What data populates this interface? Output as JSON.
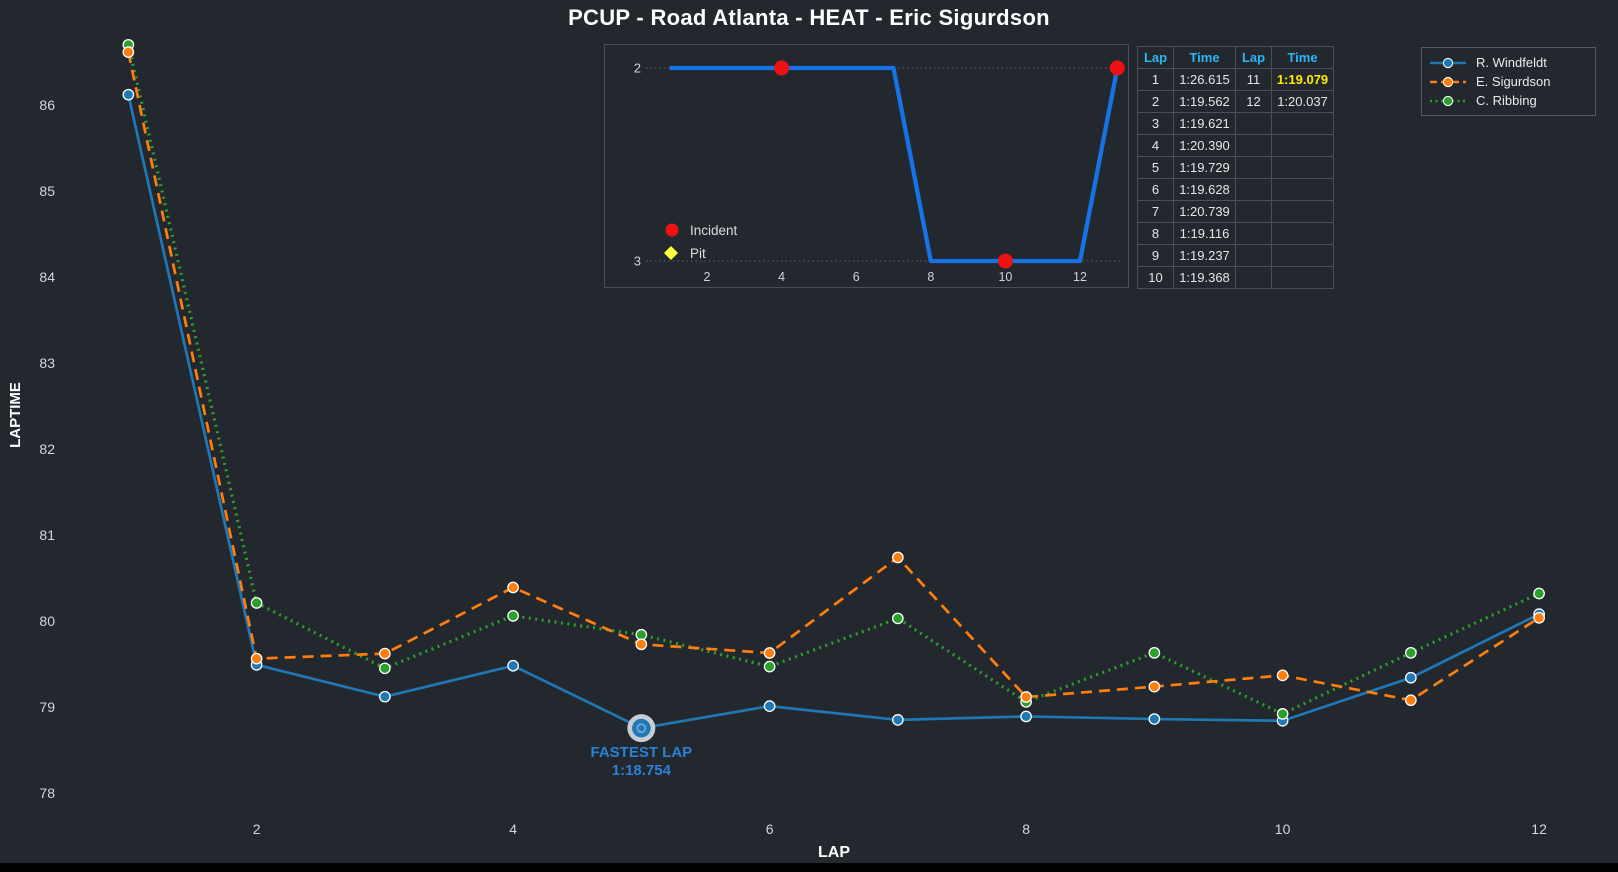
{
  "title": "PCUP - Road Atlanta - HEAT - Eric Sigurdson",
  "colors": {
    "background": "#23272e",
    "tick_text": "#d4d7da",
    "axis_title": "#ffffff",
    "table_border": "#4b5056",
    "table_header": "#29b6f6",
    "table_highlight": "#ffeb00",
    "annotation_blue": "#2a82d4",
    "fastest_ring": "#c7cdd5",
    "inset_line": "#1772e5",
    "incident_red": "#ee1111",
    "pit_yellow": "#ffff3c"
  },
  "legend": {
    "items": [
      {
        "label": "R. Windfeldt",
        "color": "#1f77b4",
        "style": "solid"
      },
      {
        "label": "E. Sigurdson",
        "color": "#ff7f0e",
        "style": "dashed"
      },
      {
        "label": "C. Ribbing",
        "color": "#2ca02c",
        "style": "dotted"
      }
    ]
  },
  "annotation": {
    "label": "FASTEST LAP",
    "value": "1:18.754",
    "lap": 5,
    "series": "R. Windfeldt"
  },
  "lap_table": {
    "headers": [
      "Lap",
      "Time",
      "Lap",
      "Time"
    ],
    "rows": [
      [
        "1",
        "1:26.615",
        "11",
        "1:19.079"
      ],
      [
        "2",
        "1:19.562",
        "12",
        "1:20.037"
      ],
      [
        "3",
        "1:19.621",
        "",
        ""
      ],
      [
        "4",
        "1:20.390",
        "",
        ""
      ],
      [
        "5",
        "1:19.729",
        "",
        ""
      ],
      [
        "6",
        "1:19.628",
        "",
        ""
      ],
      [
        "7",
        "1:20.739",
        "",
        ""
      ],
      [
        "8",
        "1:19.116",
        "",
        ""
      ],
      [
        "9",
        "1:19.237",
        "",
        ""
      ],
      [
        "10",
        "1:19.368",
        "",
        ""
      ]
    ],
    "highlight_value": "1:19.079"
  },
  "chart_data": [
    {
      "type": "line",
      "title": "PCUP - Road Atlanta - HEAT - Eric Sigurdson",
      "xlabel": "LAP",
      "ylabel": "LAPTIME",
      "x": [
        1,
        2,
        3,
        4,
        5,
        6,
        7,
        8,
        9,
        10,
        11,
        12
      ],
      "xticks": [
        2,
        4,
        6,
        8,
        10,
        12
      ],
      "yticks": [
        86,
        85,
        84,
        83,
        82,
        81,
        80,
        79,
        78
      ],
      "ylim": [
        77.6,
        86.9
      ],
      "grid": false,
      "legend_position": "top-right",
      "series": [
        {
          "name": "R. Windfeldt",
          "color": "#1f77b4",
          "line": "solid",
          "values": [
            86.12,
            79.49,
            79.12,
            79.48,
            78.754,
            79.01,
            78.85,
            78.89,
            78.86,
            78.84,
            79.34,
            80.08
          ]
        },
        {
          "name": "E. Sigurdson",
          "color": "#ff7f0e",
          "line": "dashed",
          "values": [
            86.615,
            79.562,
            79.621,
            80.39,
            79.729,
            79.628,
            80.739,
            79.116,
            79.237,
            79.368,
            79.079,
            80.037
          ]
        },
        {
          "name": "C. Ribbing",
          "color": "#2ca02c",
          "line": "dotted",
          "values": [
            86.7,
            80.21,
            79.45,
            80.06,
            79.84,
            79.47,
            80.03,
            79.06,
            79.63,
            78.92,
            79.63,
            80.32
          ]
        }
      ],
      "annotation": {
        "text": "FASTEST LAP",
        "value": "1:18.754",
        "series": "R. Windfeldt",
        "lap": 5,
        "y": 78.754
      }
    },
    {
      "type": "line",
      "name": "position-inset",
      "xticks": [
        2,
        4,
        6,
        8,
        10,
        12
      ],
      "yticks": [
        2,
        3
      ],
      "y_inverted": true,
      "x": [
        1,
        2,
        3,
        4,
        5,
        6,
        7,
        8,
        9,
        10,
        11,
        12,
        13
      ],
      "values": [
        2,
        2,
        2,
        2,
        2,
        2,
        2,
        3,
        3,
        3,
        3,
        3,
        2
      ],
      "color": "#1772e5",
      "incidents": [
        {
          "x": 4,
          "y": 2
        },
        {
          "x": 10,
          "y": 3
        },
        {
          "x": 13,
          "y": 2
        }
      ],
      "pits": [],
      "legend": [
        {
          "label": "Incident",
          "color": "#ee1111",
          "marker": "circle"
        },
        {
          "label": "Pit",
          "color": "#ffff3c",
          "marker": "diamond"
        }
      ]
    }
  ]
}
